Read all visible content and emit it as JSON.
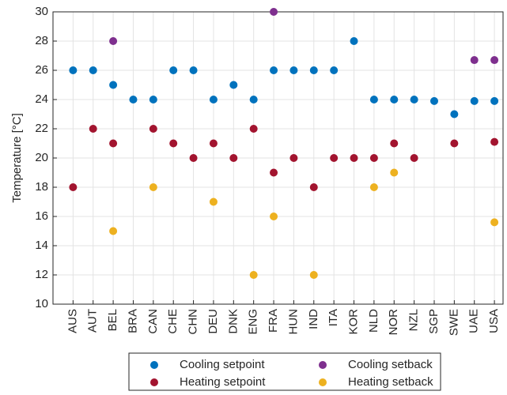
{
  "chart_data": {
    "type": "scatter",
    "ylabel": "Temperature [°C]",
    "categories": [
      "AUS",
      "AUT",
      "BEL",
      "BRA",
      "CAN",
      "CHE",
      "CHN",
      "DEU",
      "DNK",
      "ENG",
      "FRA",
      "HUN",
      "IND",
      "ITA",
      "KOR",
      "NLD",
      "NOR",
      "NZL",
      "SGP",
      "SWE",
      "UAE",
      "USA"
    ],
    "series": [
      {
        "name": "Cooling setpoint",
        "color": "#0072BD",
        "values": [
          26,
          26,
          25,
          24,
          24,
          26,
          26,
          24,
          25,
          24,
          26,
          26,
          26,
          26,
          28,
          24,
          24,
          24,
          23.9,
          23,
          23.9,
          23.9
        ]
      },
      {
        "name": "Heating setpoint",
        "color": "#A2142F",
        "values": [
          18,
          22,
          21,
          null,
          22,
          21,
          20,
          21,
          20,
          22,
          19,
          20,
          18,
          20,
          20,
          20,
          21,
          20,
          null,
          21,
          null,
          21.1
        ]
      },
      {
        "name": "Cooling setback",
        "color": "#7E2F8E",
        "values": [
          null,
          null,
          28,
          null,
          null,
          null,
          null,
          null,
          null,
          null,
          30,
          null,
          null,
          null,
          null,
          null,
          null,
          null,
          null,
          null,
          26.7,
          26.7
        ]
      },
      {
        "name": "Heating setback",
        "color": "#EDB120",
        "values": [
          null,
          null,
          15,
          null,
          18,
          null,
          null,
          17,
          null,
          12,
          16,
          null,
          12,
          null,
          null,
          18,
          19,
          null,
          null,
          null,
          null,
          15.6
        ]
      }
    ],
    "ylim": [
      10,
      30
    ],
    "yticks": [
      10,
      12,
      14,
      16,
      18,
      20,
      22,
      24,
      26,
      28,
      30
    ],
    "grid": true
  }
}
